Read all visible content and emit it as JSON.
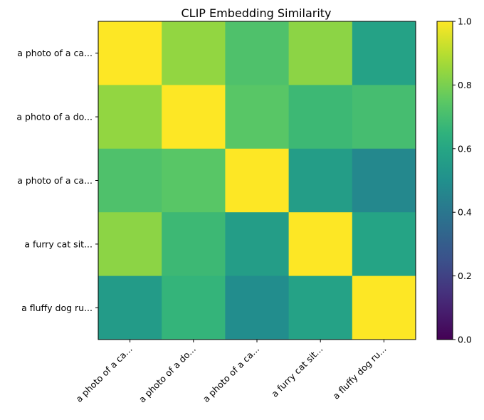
{
  "chart_data": {
    "type": "heatmap",
    "title": "CLIP Embedding Similarity",
    "row_labels": [
      "a photo of a ca...",
      "a photo of a do...",
      "a photo of a ca...",
      "a furry cat sit...",
      "a fluffy dog ru..."
    ],
    "col_labels": [
      "a photo of a ca...",
      "a photo of a do...",
      "a photo of a ca...",
      "a furry cat sit...",
      "a fluffy dog ru..."
    ],
    "values": [
      [
        1.0,
        0.84,
        0.72,
        0.83,
        0.58
      ],
      [
        0.84,
        1.0,
        0.74,
        0.68,
        0.7
      ],
      [
        0.72,
        0.74,
        1.0,
        0.56,
        0.47
      ],
      [
        0.83,
        0.68,
        0.56,
        1.0,
        0.59
      ],
      [
        0.55,
        0.66,
        0.49,
        0.58,
        1.0
      ]
    ],
    "colormap": "viridis",
    "vmin": 0.0,
    "vmax": 1.0,
    "colorbar_ticks": [
      "0.0",
      "0.2",
      "0.4",
      "0.6",
      "0.8",
      "1.0"
    ]
  }
}
